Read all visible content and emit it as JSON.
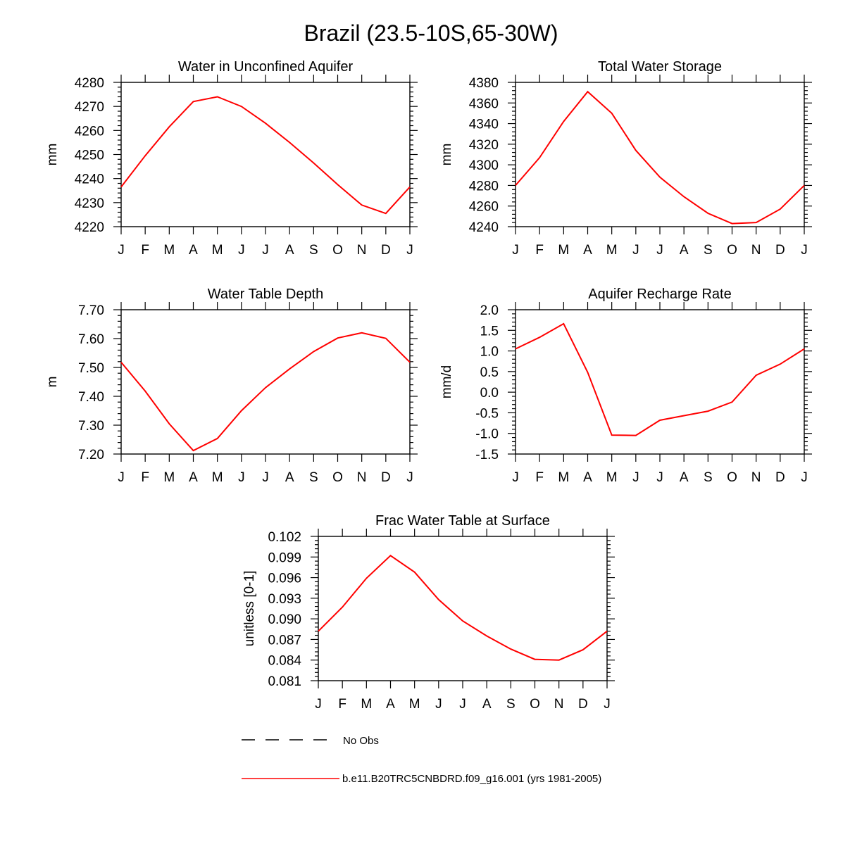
{
  "figure": {
    "title": "Brazil (23.5-10S,65-30W)"
  },
  "months": [
    "J",
    "F",
    "M",
    "A",
    "M",
    "J",
    "J",
    "A",
    "S",
    "O",
    "N",
    "D",
    "J"
  ],
  "line_color": "#ff0000",
  "legend": {
    "entries": [
      {
        "label": "No Obs",
        "style": "dashed",
        "color": "#000000"
      },
      {
        "label": "b.e11.B20TRC5CNBDRD.f09_g16.001 (yrs 1981-2005)",
        "style": "solid",
        "color": "#ff0000"
      }
    ]
  },
  "chart_data": [
    {
      "type": "line",
      "title": "Water in Unconfined Aquifer",
      "xlabel": "",
      "ylabel": "mm",
      "ylim": [
        4220,
        4280
      ],
      "yticks": [
        "4220",
        "4230",
        "4240",
        "4250",
        "4260",
        "4270",
        "4280"
      ],
      "series": [
        {
          "name": "b.e11.B20TRC5CNBDRD.f09_g16.001 (yrs 1981-2005)",
          "values": [
            4236.5,
            4249.5,
            4261.5,
            4272,
            4274,
            4270,
            4263,
            4255,
            4246.5,
            4237.5,
            4229,
            4225.5,
            4236.5
          ]
        }
      ]
    },
    {
      "type": "line",
      "title": "Total Water Storage",
      "xlabel": "",
      "ylabel": "mm",
      "ylim": [
        4240,
        4380
      ],
      "yticks": [
        "4240",
        "4260",
        "4280",
        "4300",
        "4320",
        "4340",
        "4360",
        "4380"
      ],
      "series": [
        {
          "name": "b.e11.B20TRC5CNBDRD.f09_g16.001 (yrs 1981-2005)",
          "values": [
            4280,
            4307,
            4342,
            4371,
            4350,
            4314,
            4288,
            4269,
            4253,
            4243,
            4244,
            4257,
            4280
          ]
        }
      ]
    },
    {
      "type": "line",
      "title": "Water Table Depth",
      "xlabel": "",
      "ylabel": "m",
      "ylim": [
        7.2,
        7.7
      ],
      "yticks": [
        "7.20",
        "7.30",
        "7.40",
        "7.50",
        "7.60",
        "7.70"
      ],
      "series": [
        {
          "name": "b.e11.B20TRC5CNBDRD.f09_g16.001 (yrs 1981-2005)",
          "values": [
            7.518,
            7.418,
            7.305,
            7.212,
            7.254,
            7.35,
            7.43,
            7.495,
            7.555,
            7.602,
            7.62,
            7.601,
            7.518
          ]
        }
      ]
    },
    {
      "type": "line",
      "title": "Aquifer Recharge Rate",
      "xlabel": "",
      "ylabel": "mm/d",
      "ylim": [
        -1.5,
        2.0
      ],
      "yticks": [
        "-1.5",
        "-1.0",
        "-0.5",
        "0.0",
        "0.5",
        "1.0",
        "1.5",
        "2.0"
      ],
      "series": [
        {
          "name": "b.e11.B20TRC5CNBDRD.f09_g16.001 (yrs 1981-2005)",
          "values": [
            1.05,
            1.33,
            1.66,
            0.48,
            -1.04,
            -1.05,
            -0.68,
            -0.57,
            -0.46,
            -0.24,
            0.41,
            0.68,
            1.05
          ]
        }
      ]
    },
    {
      "type": "line",
      "title": "Frac Water Table at Surface",
      "xlabel": "",
      "ylabel": "unitless [0-1]",
      "ylim": [
        0.081,
        0.102
      ],
      "yticks": [
        "0.081",
        "0.084",
        "0.087",
        "0.090",
        "0.093",
        "0.096",
        "0.099",
        "0.102"
      ],
      "series": [
        {
          "name": "b.e11.B20TRC5CNBDRD.f09_g16.001 (yrs 1981-2005)",
          "values": [
            0.0882,
            0.0917,
            0.0959,
            0.0992,
            0.0968,
            0.0928,
            0.0897,
            0.0875,
            0.0856,
            0.0841,
            0.084,
            0.0855,
            0.0882
          ]
        }
      ]
    }
  ]
}
